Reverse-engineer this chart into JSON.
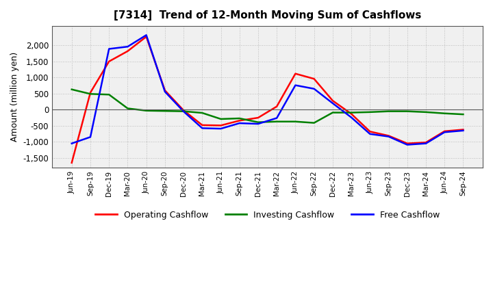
{
  "title": "[7314]  Trend of 12-Month Moving Sum of Cashflows",
  "ylabel": "Amount (million yen)",
  "x_labels": [
    "Jun-19",
    "Sep-19",
    "Dec-19",
    "Mar-20",
    "Jun-20",
    "Sep-20",
    "Dec-20",
    "Mar-21",
    "Jun-21",
    "Sep-21",
    "Dec-21",
    "Mar-22",
    "Jun-22",
    "Sep-22",
    "Dec-22",
    "Mar-23",
    "Jun-23",
    "Sep-23",
    "Dec-23",
    "Mar-24",
    "Jun-24",
    "Sep-24"
  ],
  "operating": [
    -1650,
    530,
    1500,
    1820,
    2270,
    600,
    -20,
    -480,
    -490,
    -340,
    -250,
    100,
    1120,
    960,
    280,
    -130,
    -680,
    -810,
    -1050,
    -1020,
    -670,
    -620
  ],
  "investing": [
    630,
    490,
    470,
    40,
    -30,
    -40,
    -50,
    -100,
    -290,
    -270,
    -390,
    -370,
    -370,
    -410,
    -90,
    -90,
    -75,
    -50,
    -50,
    -75,
    -115,
    -145
  ],
  "free": [
    -1050,
    -850,
    1890,
    1960,
    2320,
    560,
    -55,
    -575,
    -590,
    -420,
    -440,
    -260,
    760,
    650,
    200,
    -240,
    -755,
    -835,
    -1090,
    -1050,
    -700,
    -650
  ],
  "line_colors": {
    "operating": "#ff0000",
    "investing": "#008000",
    "free": "#0000ff"
  },
  "line_width": 1.8,
  "ylim": [
    -1800,
    2600
  ],
  "yticks": [
    -1500,
    -1000,
    -500,
    0,
    500,
    1000,
    1500,
    2000
  ],
  "background_color": "#ffffff",
  "plot_bg_color": "#f0f0f0",
  "grid_color": "#bbbbbb",
  "legend_labels": [
    "Operating Cashflow",
    "Investing Cashflow",
    "Free Cashflow"
  ]
}
